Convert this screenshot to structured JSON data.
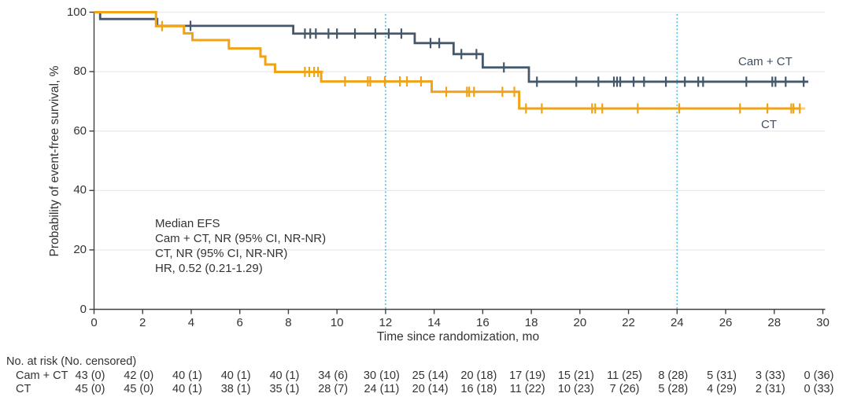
{
  "chart_data": {
    "type": "line",
    "variant": "kaplan_meier_step",
    "title": "",
    "xlabel": "Time since randomization, mo",
    "ylabel": "Probability of event-free survival, %",
    "xlim": [
      0,
      30
    ],
    "ylim": [
      0,
      100
    ],
    "x_ticks": [
      0,
      2,
      4,
      6,
      8,
      10,
      12,
      14,
      16,
      18,
      20,
      22,
      24,
      26,
      28,
      30
    ],
    "y_ticks": [
      0,
      20,
      40,
      60,
      80,
      100
    ],
    "grid": "horizontal",
    "legend_position": "curve-end-labels",
    "reference_lines_x": [
      12,
      24
    ],
    "annotation": [
      "Median EFS",
      "Cam + CT, NR (95% CI, NR-NR)",
      "CT, NR (95% CI, NR-NR)",
      "HR, 0.52 (0.21-1.29)"
    ],
    "colors": {
      "cam_ct": "#45586b",
      "ct": "#f0a316",
      "reference_line": "#44b5e9",
      "grid": "#eaeaea",
      "axis": "#404040",
      "text": "#333333"
    },
    "series": [
      {
        "name": "Cam + CT",
        "color": "#45586b",
        "end": 29.4,
        "steps": [
          [
            0,
            100
          ],
          [
            0.25,
            97.7
          ],
          [
            2.6,
            95.4
          ],
          [
            8.2,
            92.8
          ],
          [
            13.2,
            89.6
          ],
          [
            14.8,
            85.9
          ],
          [
            16,
            81.4
          ],
          [
            17.9,
            76.6
          ]
        ],
        "censors": [
          [
            3.97,
            95.4
          ],
          [
            8.68,
            92.8
          ],
          [
            8.9,
            92.8
          ],
          [
            9.13,
            92.8
          ],
          [
            9.65,
            92.8
          ],
          [
            10,
            92.8
          ],
          [
            10.74,
            92.8
          ],
          [
            11.58,
            92.8
          ],
          [
            12.13,
            92.8
          ],
          [
            12.65,
            92.8
          ],
          [
            13.85,
            89.6
          ],
          [
            14.21,
            89.6
          ],
          [
            15.12,
            85.9
          ],
          [
            15.74,
            85.9
          ],
          [
            16.87,
            81.4
          ],
          [
            18.23,
            76.6
          ],
          [
            19.85,
            76.6
          ],
          [
            20.76,
            76.6
          ],
          [
            21.4,
            76.6
          ],
          [
            21.53,
            76.6
          ],
          [
            21.66,
            76.6
          ],
          [
            22.21,
            76.6
          ],
          [
            22.64,
            76.6
          ],
          [
            23.54,
            76.6
          ],
          [
            24.32,
            76.6
          ],
          [
            24.87,
            76.6
          ],
          [
            25.07,
            76.6
          ],
          [
            26.85,
            76.6
          ],
          [
            27.92,
            76.6
          ],
          [
            28.05,
            76.6
          ],
          [
            28.47,
            76.6
          ],
          [
            29.21,
            76.6
          ]
        ]
      },
      {
        "name": "CT",
        "color": "#f0a316",
        "end": 29.1,
        "steps": [
          [
            0,
            100
          ],
          [
            2.55,
            95.3
          ],
          [
            3.7,
            92.9
          ],
          [
            4.05,
            90.6
          ],
          [
            5.55,
            87.8
          ],
          [
            6.85,
            85.1
          ],
          [
            7.05,
            82.4
          ],
          [
            7.45,
            79.9
          ],
          [
            9.35,
            76.7
          ],
          [
            13.9,
            73.2
          ],
          [
            17.5,
            67.6
          ]
        ],
        "censors": [
          [
            2.8,
            95.3,
            1
          ],
          [
            8.68,
            79.9
          ],
          [
            8.86,
            79.9
          ],
          [
            9.06,
            79.9
          ],
          [
            9.22,
            79.9,
            1
          ],
          [
            10.33,
            76.7
          ],
          [
            11.27,
            76.7
          ],
          [
            11.37,
            76.7
          ],
          [
            11.97,
            76.7
          ],
          [
            12.59,
            76.7
          ],
          [
            12.88,
            76.7
          ],
          [
            13.46,
            76.7
          ],
          [
            14.5,
            73.2
          ],
          [
            15.35,
            73.2
          ],
          [
            15.44,
            73.2
          ],
          [
            15.64,
            73.2
          ],
          [
            16.81,
            73.2
          ],
          [
            17.3,
            73.2
          ],
          [
            17.78,
            67.6
          ],
          [
            18.43,
            67.6
          ],
          [
            20.5,
            67.6
          ],
          [
            20.63,
            67.6
          ],
          [
            20.92,
            67.6
          ],
          [
            22.38,
            67.6,
            1
          ],
          [
            24.09,
            67.6
          ],
          [
            26.59,
            67.6
          ],
          [
            27.72,
            67.6
          ],
          [
            28.7,
            67.6
          ],
          [
            28.79,
            67.6
          ],
          [
            29.05,
            67.6,
            1
          ]
        ]
      }
    ]
  },
  "curve_labels": {
    "cam_ct": "Cam + CT",
    "ct": "CT"
  },
  "risk_table": {
    "header": "No. at risk (No. censored)",
    "time_points": [
      0,
      2,
      4,
      6,
      8,
      10,
      12,
      14,
      16,
      18,
      20,
      22,
      24,
      26,
      28,
      30
    ],
    "rows": [
      {
        "label": "Cam + CT",
        "values": [
          "43 (0)",
          "42 (0)",
          "40 (1)",
          "40 (1)",
          "40 (1)",
          "34 (6)",
          "30 (10)",
          "25 (14)",
          "20 (18)",
          "17 (19)",
          "15 (21)",
          "11 (25)",
          "8 (28)",
          "5 (31)",
          "3 (33)",
          "0 (36)"
        ]
      },
      {
        "label": "CT",
        "values": [
          "45 (0)",
          "45 (0)",
          "40 (1)",
          "38 (1)",
          "35 (1)",
          "28 (7)",
          "24 (11)",
          "20 (14)",
          "16 (18)",
          "11 (22)",
          "10 (23)",
          "7 (26)",
          "5 (28)",
          "4 (29)",
          "2 (31)",
          "0 (33)"
        ]
      }
    ]
  }
}
